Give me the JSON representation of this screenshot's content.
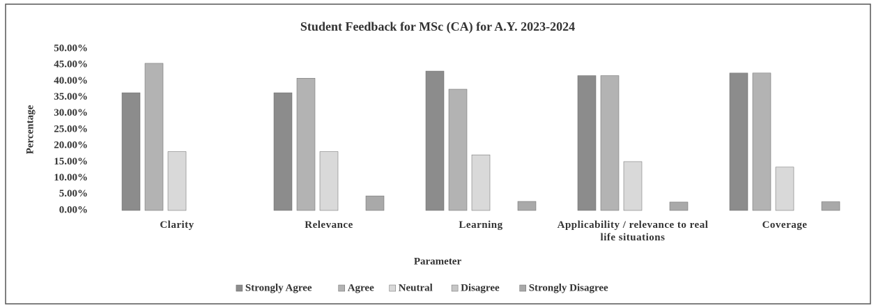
{
  "chart_data": {
    "type": "bar",
    "title": "Student Feedback for MSc (CA) for A.Y. 2023-2024",
    "x_label": "Parameter",
    "y_label": "Percentage",
    "categories": [
      "Clarity",
      "Relevance",
      "Learning",
      "Applicability / relevance to real life situations",
      "Coverage"
    ],
    "series": [
      {
        "name": "Strongly Agree",
        "color": "#8c8c8c",
        "values": [
          36.4,
          36.4,
          43.1,
          41.7,
          42.5
        ]
      },
      {
        "name": "Agree",
        "color": "#b3b3b3",
        "values": [
          45.5,
          40.9,
          37.5,
          41.7,
          42.5
        ]
      },
      {
        "name": "Neutral",
        "color": "#d9d9d9",
        "values": [
          18.2,
          18.2,
          17.2,
          15.1,
          13.4
        ]
      },
      {
        "name": "Disagree",
        "color": "#c6c6c6",
        "values": [
          0,
          0,
          0,
          0,
          0
        ]
      },
      {
        "name": "Strongly Disagree",
        "color": "#a9a9a9",
        "values": [
          0,
          4.5,
          2.8,
          2.6,
          2.7
        ]
      }
    ],
    "ylim": [
      0,
      50
    ],
    "yticks": [
      {
        "value": 0,
        "label": "0.00%"
      },
      {
        "value": 5,
        "label": "5.00%"
      },
      {
        "value": 10,
        "label": "10.00%"
      },
      {
        "value": 15,
        "label": "15.00%"
      },
      {
        "value": 20,
        "label": "20.00%"
      },
      {
        "value": 25,
        "label": "25.00%"
      },
      {
        "value": 30,
        "label": "30.00%"
      },
      {
        "value": 35,
        "label": "35.00%"
      },
      {
        "value": 40,
        "label": "40.00%"
      },
      {
        "value": 45,
        "label": "45.00%"
      },
      {
        "value": 50,
        "label": "50.00%"
      }
    ],
    "grid": false,
    "legend": "bottom"
  }
}
